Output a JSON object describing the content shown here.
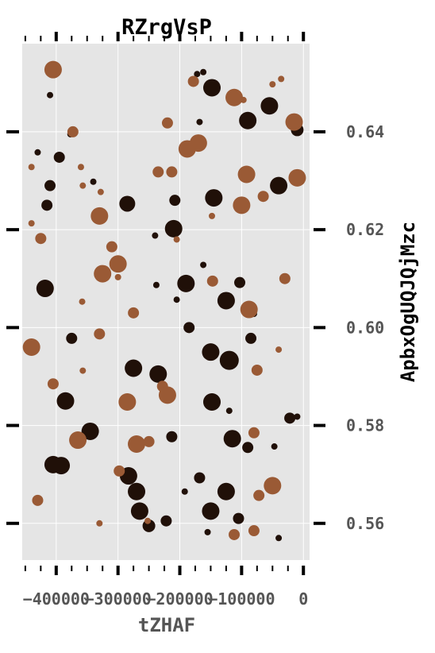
{
  "chart_data": {
    "type": "scatter",
    "title": "RZrgVsP",
    "xlabel": "tZHAF",
    "ylabel": "ApbxOgUQJQjMzc",
    "xlim": [
      -455000,
      10000
    ],
    "ylim": [
      0.5525,
      0.658
    ],
    "x_ticks": [
      -400000,
      -300000,
      -200000,
      -100000,
      0
    ],
    "x_tick_labels": [
      "−400000",
      "−300000",
      "−200000",
      "−100000",
      "0"
    ],
    "y_ticks": [
      0.56,
      0.58,
      0.6,
      0.62,
      0.64
    ],
    "y_tick_labels": [
      "0.56",
      "0.58",
      "0.60",
      "0.62",
      "0.64"
    ],
    "x_axis_position": "bottom",
    "y_axis_position": "right",
    "grid": true,
    "colors": {
      "background": "#e5e5e5",
      "grid": "#ffffff",
      "dark_points": "#201008",
      "brown_points": "#9a5a35"
    },
    "series": [
      {
        "color": "#201008",
        "points": [
          {
            "x": -10000,
            "y": 0.6404,
            "s": 8
          },
          {
            "x": -40000,
            "y": 0.629,
            "s": 11
          },
          {
            "x": -55000,
            "y": 0.6453,
            "s": 11
          },
          {
            "x": -90000,
            "y": 0.6423,
            "s": 11
          },
          {
            "x": -148000,
            "y": 0.649,
            "s": 11
          },
          {
            "x": -162000,
            "y": 0.6522,
            "s": 4
          },
          {
            "x": -172000,
            "y": 0.6518,
            "s": 4
          },
          {
            "x": -168000,
            "y": 0.642,
            "s": 4
          },
          {
            "x": -410000,
            "y": 0.6475,
            "s": 4
          },
          {
            "x": -430000,
            "y": 0.6358,
            "s": 4
          },
          {
            "x": -395000,
            "y": 0.6348,
            "s": 7
          },
          {
            "x": -377000,
            "y": 0.6395,
            "s": 4
          },
          {
            "x": -410000,
            "y": 0.629,
            "s": 7
          },
          {
            "x": -415000,
            "y": 0.625,
            "s": 7
          },
          {
            "x": -340000,
            "y": 0.6298,
            "s": 4
          },
          {
            "x": -285000,
            "y": 0.6253,
            "s": 10
          },
          {
            "x": -208000,
            "y": 0.626,
            "s": 7
          },
          {
            "x": -210000,
            "y": 0.6202,
            "s": 11
          },
          {
            "x": -145000,
            "y": 0.6265,
            "s": 11
          },
          {
            "x": -240000,
            "y": 0.6188,
            "s": 4
          },
          {
            "x": -162000,
            "y": 0.6128,
            "s": 4
          },
          {
            "x": -418000,
            "y": 0.608,
            "s": 11
          },
          {
            "x": -238000,
            "y": 0.6087,
            "s": 4
          },
          {
            "x": -190000,
            "y": 0.609,
            "s": 11
          },
          {
            "x": -125000,
            "y": 0.6055,
            "s": 11
          },
          {
            "x": -103000,
            "y": 0.6092,
            "s": 7
          },
          {
            "x": -205000,
            "y": 0.6057,
            "s": 4
          },
          {
            "x": -80000,
            "y": 0.6028,
            "s": 4
          },
          {
            "x": -185000,
            "y": 0.6,
            "s": 7
          },
          {
            "x": -375000,
            "y": 0.5978,
            "s": 7
          },
          {
            "x": -85000,
            "y": 0.5978,
            "s": 7
          },
          {
            "x": -150000,
            "y": 0.595,
            "s": 11
          },
          {
            "x": -120000,
            "y": 0.5933,
            "s": 12
          },
          {
            "x": -275000,
            "y": 0.5917,
            "s": 11
          },
          {
            "x": -235000,
            "y": 0.5905,
            "s": 11
          },
          {
            "x": -385000,
            "y": 0.585,
            "s": 11
          },
          {
            "x": -148000,
            "y": 0.5848,
            "s": 11
          },
          {
            "x": -120000,
            "y": 0.583,
            "s": 4
          },
          {
            "x": -22000,
            "y": 0.5815,
            "s": 7
          },
          {
            "x": -10000,
            "y": 0.5818,
            "s": 4
          },
          {
            "x": -345000,
            "y": 0.5788,
            "s": 11
          },
          {
            "x": -213000,
            "y": 0.5777,
            "s": 7
          },
          {
            "x": -115000,
            "y": 0.5773,
            "s": 11
          },
          {
            "x": -90000,
            "y": 0.5755,
            "s": 7
          },
          {
            "x": -47000,
            "y": 0.5757,
            "s": 4
          },
          {
            "x": -405000,
            "y": 0.572,
            "s": 11
          },
          {
            "x": -392000,
            "y": 0.5718,
            "s": 11
          },
          {
            "x": -283000,
            "y": 0.5697,
            "s": 11
          },
          {
            "x": -168000,
            "y": 0.5693,
            "s": 7
          },
          {
            "x": -270000,
            "y": 0.5665,
            "s": 11
          },
          {
            "x": -125000,
            "y": 0.5665,
            "s": 11
          },
          {
            "x": -192000,
            "y": 0.5665,
            "s": 4
          },
          {
            "x": -265000,
            "y": 0.5625,
            "s": 11
          },
          {
            "x": -150000,
            "y": 0.5625,
            "s": 11
          },
          {
            "x": -222000,
            "y": 0.5605,
            "s": 7
          },
          {
            "x": -105000,
            "y": 0.561,
            "s": 7
          },
          {
            "x": -250000,
            "y": 0.5595,
            "s": 8
          },
          {
            "x": -155000,
            "y": 0.5582,
            "s": 4
          },
          {
            "x": -40000,
            "y": 0.557,
            "s": 4
          }
        ]
      },
      {
        "color": "#9a5a35",
        "points": [
          {
            "x": -405000,
            "y": 0.6527,
            "s": 11
          },
          {
            "x": -178000,
            "y": 0.6503,
            "s": 7
          },
          {
            "x": -112000,
            "y": 0.647,
            "s": 11
          },
          {
            "x": -97000,
            "y": 0.6465,
            "s": 4
          },
          {
            "x": -50000,
            "y": 0.6497,
            "s": 4
          },
          {
            "x": -36000,
            "y": 0.6508,
            "s": 4
          },
          {
            "x": -15000,
            "y": 0.642,
            "s": 11
          },
          {
            "x": -220000,
            "y": 0.6418,
            "s": 7
          },
          {
            "x": -373000,
            "y": 0.64,
            "s": 7
          },
          {
            "x": -170000,
            "y": 0.6377,
            "s": 11
          },
          {
            "x": -188000,
            "y": 0.6365,
            "s": 11
          },
          {
            "x": -440000,
            "y": 0.6328,
            "s": 4
          },
          {
            "x": -360000,
            "y": 0.6328,
            "s": 4
          },
          {
            "x": -235000,
            "y": 0.6318,
            "s": 7
          },
          {
            "x": -213000,
            "y": 0.6318,
            "s": 7
          },
          {
            "x": -92000,
            "y": 0.6313,
            "s": 11
          },
          {
            "x": -10000,
            "y": 0.6306,
            "s": 11
          },
          {
            "x": -357000,
            "y": 0.629,
            "s": 4
          },
          {
            "x": -328000,
            "y": 0.6277,
            "s": 4
          },
          {
            "x": -65000,
            "y": 0.6268,
            "s": 7
          },
          {
            "x": -100000,
            "y": 0.625,
            "s": 11
          },
          {
            "x": -330000,
            "y": 0.6228,
            "s": 11
          },
          {
            "x": -148000,
            "y": 0.6228,
            "s": 4
          },
          {
            "x": -440000,
            "y": 0.6213,
            "s": 4
          },
          {
            "x": -425000,
            "y": 0.6182,
            "s": 7
          },
          {
            "x": -205000,
            "y": 0.618,
            "s": 4
          },
          {
            "x": -310000,
            "y": 0.6165,
            "s": 7
          },
          {
            "x": -300000,
            "y": 0.613,
            "s": 11
          },
          {
            "x": -325000,
            "y": 0.611,
            "s": 11
          },
          {
            "x": -300000,
            "y": 0.6103,
            "s": 4
          },
          {
            "x": -147000,
            "y": 0.6095,
            "s": 7
          },
          {
            "x": -30000,
            "y": 0.61,
            "s": 7
          },
          {
            "x": -358000,
            "y": 0.6053,
            "s": 4
          },
          {
            "x": -88000,
            "y": 0.6037,
            "s": 11
          },
          {
            "x": -275000,
            "y": 0.603,
            "s": 7
          },
          {
            "x": -330000,
            "y": 0.5987,
            "s": 7
          },
          {
            "x": -440000,
            "y": 0.596,
            "s": 11
          },
          {
            "x": -40000,
            "y": 0.5955,
            "s": 4
          },
          {
            "x": -357000,
            "y": 0.5912,
            "s": 4
          },
          {
            "x": -75000,
            "y": 0.5913,
            "s": 7
          },
          {
            "x": -405000,
            "y": 0.5885,
            "s": 7
          },
          {
            "x": -228000,
            "y": 0.588,
            "s": 7
          },
          {
            "x": -220000,
            "y": 0.5862,
            "s": 11
          },
          {
            "x": -285000,
            "y": 0.5848,
            "s": 11
          },
          {
            "x": -80000,
            "y": 0.5785,
            "s": 7
          },
          {
            "x": -365000,
            "y": 0.577,
            "s": 11
          },
          {
            "x": -270000,
            "y": 0.5762,
            "s": 11
          },
          {
            "x": -250000,
            "y": 0.5767,
            "s": 7
          },
          {
            "x": -298000,
            "y": 0.5707,
            "s": 7
          },
          {
            "x": -50000,
            "y": 0.5677,
            "s": 11
          },
          {
            "x": -72000,
            "y": 0.5657,
            "s": 7
          },
          {
            "x": -430000,
            "y": 0.5647,
            "s": 7
          },
          {
            "x": -330000,
            "y": 0.56,
            "s": 4
          },
          {
            "x": -80000,
            "y": 0.5585,
            "s": 7
          },
          {
            "x": -112000,
            "y": 0.5577,
            "s": 7
          },
          {
            "x": -252000,
            "y": 0.5605,
            "s": 4
          }
        ]
      }
    ]
  }
}
